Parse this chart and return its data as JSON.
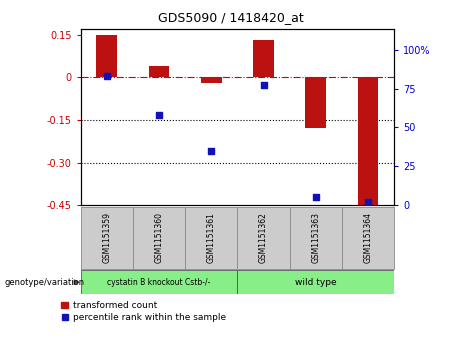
{
  "title": "GDS5090 / 1418420_at",
  "samples": [
    "GSM1151359",
    "GSM1151360",
    "GSM1151361",
    "GSM1151362",
    "GSM1151363",
    "GSM1151364"
  ],
  "bar_values": [
    0.15,
    0.04,
    -0.02,
    0.13,
    -0.18,
    -0.46
  ],
  "dot_values_percentile": [
    83,
    58,
    35,
    77,
    5,
    2
  ],
  "ylim_left": [
    -0.45,
    0.17
  ],
  "ylim_right": [
    0,
    113.33
  ],
  "yticks_left": [
    0.15,
    0,
    -0.15,
    -0.3,
    -0.45
  ],
  "ytick_labels_left": [
    "0.15",
    "0",
    "-0.15",
    "-0.30",
    "-0.45"
  ],
  "yticks_right_vals": [
    100,
    75,
    50,
    25,
    0
  ],
  "yticks_right_norm": [
    100,
    75,
    50,
    25,
    0
  ],
  "bar_color": "#bb1111",
  "dot_color": "#1111bb",
  "zero_line_color": "#cc0000",
  "hline_color": "#000000",
  "group1_label": "cystatin B knockout Cstb-/-",
  "group2_label": "wild type",
  "group1_color": "#88ee88",
  "group2_color": "#88ee88",
  "genotype_label": "genotype/variation",
  "legend_bar_label": "transformed count",
  "legend_dot_label": "percentile rank within the sample",
  "tick_label_color_left": "#cc0000",
  "tick_label_color_right": "#0000cc",
  "bar_width": 0.4
}
